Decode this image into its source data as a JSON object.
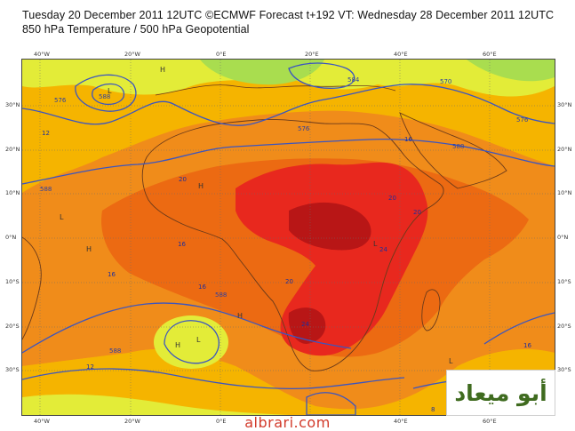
{
  "header": {
    "line1": "Tuesday 20 December 2011 12UTC ©ECMWF Forecast t+192 VT: Wednesday 28 December 2011 12UTC",
    "line2": "850 hPa Temperature / 500 hPa Geopotential"
  },
  "axes": {
    "lon_labels": [
      "40°W",
      "20°W",
      "0°E",
      "20°E",
      "40°E",
      "60°E"
    ],
    "lat_labels": [
      "30°N",
      "20°N",
      "10°N",
      "0°N",
      "10°S",
      "20°S",
      "30°S"
    ]
  },
  "contours": {
    "geopotential_labels": [
      "576",
      "588",
      "584",
      "570",
      "588",
      "576",
      "588",
      "588",
      "588",
      "576"
    ],
    "temperature_labels": [
      "12",
      "16",
      "20",
      "20",
      "24",
      "20",
      "16",
      "16",
      "16",
      "20",
      "24",
      "12",
      "16",
      "8"
    ]
  },
  "pressure_marks": [
    "H",
    "H",
    "H",
    "L",
    "L",
    "L",
    "H",
    "H",
    "L",
    "L"
  ],
  "colors": {
    "band_cold": "#a9dd4f",
    "band_cool": "#e3ec38",
    "band_mild": "#f5b400",
    "band_warm": "#f08c1a",
    "band_hot": "#ec6a12",
    "band_very_hot": "#e8281e",
    "band_extreme": "#b81616",
    "contour": "#3b55c0",
    "coast": "#6b3a1a"
  },
  "logo_text": "أبو ميعاد",
  "watermark": "albrari.com"
}
